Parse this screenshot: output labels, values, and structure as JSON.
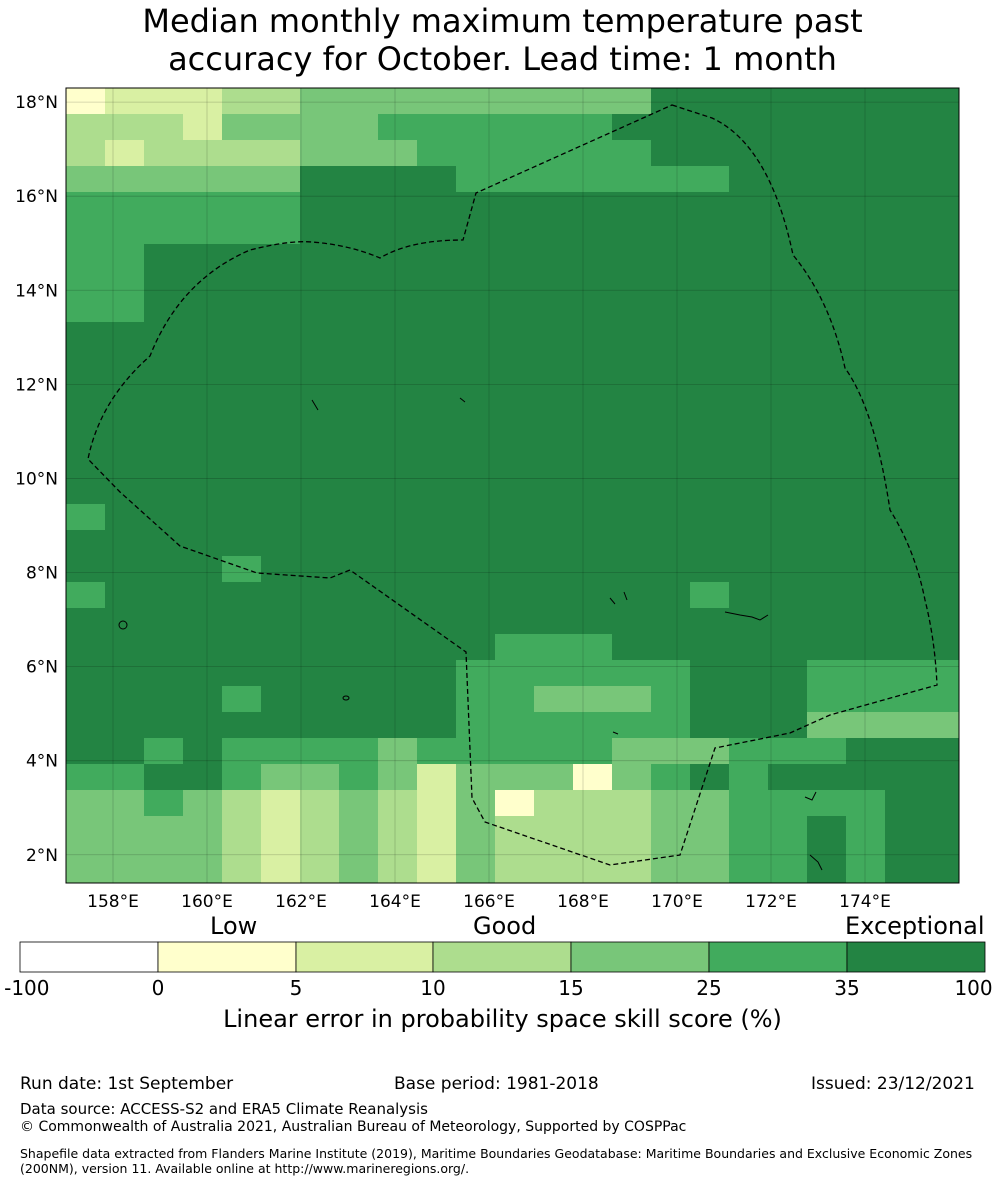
{
  "title": {
    "line1": "Median monthly maximum temperature past",
    "line2": "accuracy for October. Lead time: 1 month"
  },
  "map": {
    "lon_range": [
      157,
      176
    ],
    "lat_range": [
      1.4,
      18.3
    ],
    "lon_ticks": [
      "158°E",
      "160°E",
      "162°E",
      "164°E",
      "166°E",
      "168°E",
      "170°E",
      "172°E",
      "174°E"
    ],
    "lat_ticks": [
      "2°N",
      "4°N",
      "6°N",
      "8°N",
      "10°N",
      "12°N",
      "14°N",
      "16°N",
      "18°N"
    ],
    "grid": true
  },
  "legend": {
    "category_labels": [
      "Low",
      "Good",
      "Exceptional"
    ],
    "ticks": [
      "-100",
      "0",
      "5",
      "10",
      "15",
      "25",
      "35",
      "100"
    ],
    "title": "Linear error in probability space skill score (%)",
    "colors": [
      "#ffffff",
      "#ffffcc",
      "#d9f0a3",
      "#addd8e",
      "#78c679",
      "#41ab5d",
      "#238443"
    ]
  },
  "footer": {
    "run_date": "Run date: 1st September",
    "base_period": "Base period: 1981-2018",
    "issued": "Issued: 23/12/2021",
    "data_source": "Data source: ACCESS-S2 and ERA5 Climate Reanalysis",
    "copyright": "© Commonwealth of Australia 2021, Australian Bureau of Meteorology, Supported by COSPPac",
    "shapefile": "Shapefile data extracted from Flanders Marine Institute (2019), Maritime Boundaries Geodatabase: Maritime Boundaries and Exclusive Economic Zones (200NM), version 11. Available online at http://www.marineregions.org/."
  }
}
